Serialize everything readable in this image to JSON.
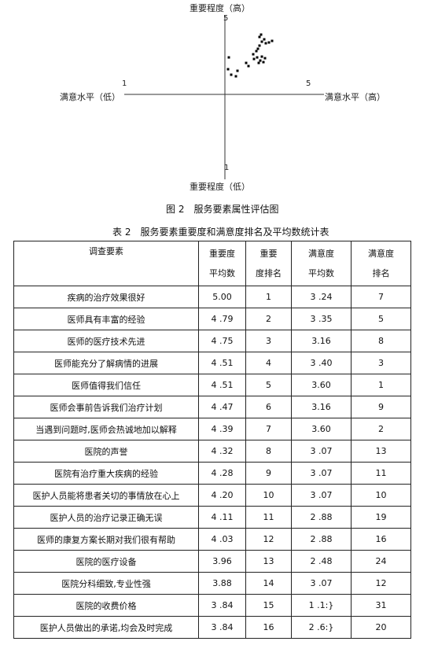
{
  "figure": {
    "y_axis_top_label": "重要程度（高）",
    "y_axis_bottom_label": "重要程度（低）",
    "x_axis_left_label": "满意水平（低）",
    "x_axis_right_label": "满意水平（高）",
    "tick_y_top": "5",
    "tick_y_bottom": "1",
    "tick_x_left": "1",
    "tick_x_right": "5",
    "caption": "图 2　服务要素属性评估图"
  },
  "table": {
    "title": "表 2　服务要素重要度和满意度排名及平均数统计表",
    "headers": {
      "item": "调查要素",
      "imp_avg_line1": "重要度",
      "imp_avg_line2": "平均数",
      "imp_rank_line1": "重要",
      "imp_rank_line2": "度排名",
      "sat_avg_line1": "满意度",
      "sat_avg_line2": "平均数",
      "sat_rank_line1": "满意度",
      "sat_rank_line2": "排名"
    },
    "rows": [
      {
        "item": "疾病的治疗效果很好",
        "imp_avg": "5.00",
        "imp_rank": "1",
        "sat_avg": "3 .24",
        "sat_rank": "7"
      },
      {
        "item": "医师具有丰富的经验",
        "imp_avg": "4 .79",
        "imp_rank": "2",
        "sat_avg": "3 .35",
        "sat_rank": "5"
      },
      {
        "item": "医师的医疗技术先进",
        "imp_avg": "4 .75",
        "imp_rank": "3",
        "sat_avg": "3.16",
        "sat_rank": "8"
      },
      {
        "item": "医师能充分了解病情的进展",
        "imp_avg": "4 .51",
        "imp_rank": "4",
        "sat_avg": "3 .40",
        "sat_rank": "3"
      },
      {
        "item": "医师值得我们信任",
        "imp_avg": "4 .51",
        "imp_rank": "5",
        "sat_avg": "3.60",
        "sat_rank": "1"
      },
      {
        "item": "医师会事前告诉我们治疗计划",
        "imp_avg": "4 .47",
        "imp_rank": "6",
        "sat_avg": "3.16",
        "sat_rank": "9"
      },
      {
        "item": "当遇到问题时,医师会热诚地加以解释",
        "imp_avg": "4 .39",
        "imp_rank": "7",
        "sat_avg": "3.60",
        "sat_rank": "2"
      },
      {
        "item": "医院的声誉",
        "imp_avg": "4 .32",
        "imp_rank": "8",
        "sat_avg": "3 .07",
        "sat_rank": "13"
      },
      {
        "item": "医院有治疗重大疾病的经验",
        "imp_avg": "4 .28",
        "imp_rank": "9",
        "sat_avg": "3 .07",
        "sat_rank": "11"
      },
      {
        "item": "医护人员能将患者关切的事情放在心上",
        "imp_avg": "4 .20",
        "imp_rank": "10",
        "sat_avg": "3 .07",
        "sat_rank": "10"
      },
      {
        "item": "医护人员的治疗记录正确无误",
        "imp_avg": "4 .11",
        "imp_rank": "11",
        "sat_avg": "2 .88",
        "sat_rank": "19"
      },
      {
        "item": "医师的康复方案长期对我们很有帮助",
        "imp_avg": "4 .03",
        "imp_rank": "12",
        "sat_avg": "2 .88",
        "sat_rank": "16"
      },
      {
        "item": "医院的医疗设备",
        "imp_avg": "3.96",
        "imp_rank": "13",
        "sat_avg": "2 .48",
        "sat_rank": "24"
      },
      {
        "item": "医院分科细致,专业性强",
        "imp_avg": "3.88",
        "imp_rank": "14",
        "sat_avg": "3 .07",
        "sat_rank": "12"
      },
      {
        "item": "医院的收费价格",
        "imp_avg": "3 .84",
        "imp_rank": "15",
        "sat_avg": "1 .1:}",
        "sat_rank": "31"
      },
      {
        "item": "医护人员做出的承诺,均会及时完成",
        "imp_avg": "3 .84",
        "imp_rank": "16",
        "sat_avg": "2 .6:}",
        "sat_rank": "20"
      }
    ]
  }
}
